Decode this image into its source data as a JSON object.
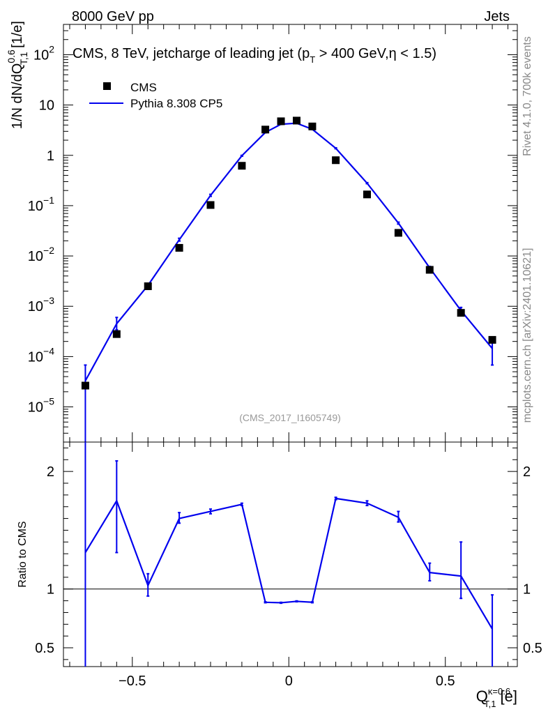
{
  "header": {
    "left": "8000 GeV pp",
    "right": "Jets"
  },
  "side_labels": {
    "rivet": "Rivet 4.1.0,  700k events",
    "site": "mcplots.cern.ch [arXiv:2401.10621]"
  },
  "chart_data": [
    {
      "panel": "main",
      "type": "scatter",
      "title_parts": [
        "CMS, 8 TeV, jetcharge of leading jet (p",
        "T",
        " > 400 GeV,η < 1.5)"
      ],
      "ylabel_parts": [
        "1/N dN/dQ",
        "0.6",
        "T,1",
        " [1/e]"
      ],
      "xlim": [
        -0.72,
        0.73
      ],
      "yscale": "log",
      "ylim": [
        2e-06,
        400
      ],
      "y_ticks": [
        {
          "value": 1e-05,
          "base": "10",
          "exp": "−5"
        },
        {
          "value": 0.0001,
          "base": "10",
          "exp": "−4"
        },
        {
          "value": 0.001,
          "base": "10",
          "exp": "−3"
        },
        {
          "value": 0.01,
          "base": "10",
          "exp": "−2"
        },
        {
          "value": 0.1,
          "base": "10",
          "exp": "−1"
        },
        {
          "value": 1,
          "base": "1",
          "exp": ""
        },
        {
          "value": 10,
          "base": "10",
          "exp": ""
        },
        {
          "value": 100,
          "base": "10",
          "exp": "2"
        }
      ],
      "watermark": "(CMS_2017_I1605749)",
      "legend_position": "top-left",
      "series": [
        {
          "name": "CMS",
          "kind": "markers",
          "color": "#000000",
          "points": [
            {
              "x": -0.65,
              "y": 2.65e-05
            },
            {
              "x": -0.55,
              "y": 0.00028
            },
            {
              "x": -0.45,
              "y": 0.0025
            },
            {
              "x": -0.35,
              "y": 0.0145
            },
            {
              "x": -0.25,
              "y": 0.103
            },
            {
              "x": -0.15,
              "y": 0.62
            },
            {
              "x": -0.075,
              "y": 3.25
            },
            {
              "x": -0.025,
              "y": 4.75
            },
            {
              "x": 0.025,
              "y": 4.9
            },
            {
              "x": 0.075,
              "y": 3.75
            },
            {
              "x": 0.15,
              "y": 0.8
            },
            {
              "x": 0.25,
              "y": 0.167
            },
            {
              "x": 0.35,
              "y": 0.0288
            },
            {
              "x": 0.45,
              "y": 0.0053
            },
            {
              "x": 0.55,
              "y": 0.00074
            },
            {
              "x": 0.65,
              "y": 0.000215
            }
          ]
        },
        {
          "name": "Pythia 8.308 CP5",
          "kind": "line",
          "color": "#0000ee",
          "points": [
            {
              "x": -0.65,
              "y": 3.3e-05,
              "lo": 1e-06,
              "hi": 6.8e-05
            },
            {
              "x": -0.55,
              "y": 0.00045,
              "lo": 0.00034,
              "hi": 0.0006
            },
            {
              "x": -0.45,
              "y": 0.0026,
              "lo": 0.0024,
              "hi": 0.0028
            },
            {
              "x": -0.35,
              "y": 0.021,
              "lo": 0.0198,
              "hi": 0.0225
            },
            {
              "x": -0.25,
              "y": 0.16,
              "lo": 0.153,
              "hi": 0.168
            },
            {
              "x": -0.15,
              "y": 0.98,
              "lo": 0.96,
              "hi": 1.0
            },
            {
              "x": -0.075,
              "y": 2.85,
              "lo": 2.8,
              "hi": 2.9
            },
            {
              "x": -0.025,
              "y": 4.15,
              "lo": 4.1,
              "hi": 4.2
            },
            {
              "x": 0.025,
              "y": 4.35,
              "lo": 4.3,
              "hi": 4.4
            },
            {
              "x": 0.075,
              "y": 3.3,
              "lo": 3.25,
              "hi": 3.35
            },
            {
              "x": 0.15,
              "y": 1.38,
              "lo": 1.35,
              "hi": 1.41
            },
            {
              "x": 0.25,
              "y": 0.28,
              "lo": 0.273,
              "hi": 0.287
            },
            {
              "x": 0.35,
              "y": 0.045,
              "lo": 0.043,
              "hi": 0.047
            },
            {
              "x": 0.45,
              "y": 0.0058,
              "lo": 0.0054,
              "hi": 0.0062
            },
            {
              "x": 0.55,
              "y": 0.00082,
              "lo": 0.0007,
              "hi": 0.00095
            },
            {
              "x": 0.65,
              "y": 0.000145,
              "lo": 6.8e-05,
              "hi": 0.000205
            }
          ]
        }
      ]
    },
    {
      "panel": "ratio",
      "type": "line",
      "ylabel": "Ratio to CMS",
      "xlabel_base": "Q",
      "xlabel_sup": "κ=0.6",
      "xlabel_sub": "T,1",
      "xlabel_unit": " [e]",
      "xlim": [
        -0.72,
        0.73
      ],
      "ylim": [
        0.34,
        2.25
      ],
      "y_ticks": [
        0.5,
        1,
        2
      ],
      "y_tick_labels": [
        "0.5",
        "1",
        "2"
      ],
      "x_ticks": [
        -0.5,
        0,
        0.5
      ],
      "x_tick_labels": [
        "−0.5",
        "0",
        "0.5"
      ],
      "reference_line": 1,
      "series": [
        {
          "name": "Pythia 8.308 CP5 / CMS",
          "color": "#0000ee",
          "points": [
            {
              "x": -0.65,
              "y": 1.31,
              "lo": 0.3,
              "hi": 2.3
            },
            {
              "x": -0.55,
              "y": 1.75,
              "lo": 1.31,
              "hi": 2.09
            },
            {
              "x": -0.45,
              "y": 1.03,
              "lo": 0.94,
              "hi": 1.13
            },
            {
              "x": -0.35,
              "y": 1.6,
              "lo": 1.56,
              "hi": 1.65
            },
            {
              "x": -0.25,
              "y": 1.66,
              "lo": 1.64,
              "hi": 1.68
            },
            {
              "x": -0.15,
              "y": 1.72,
              "lo": 1.71,
              "hi": 1.73
            },
            {
              "x": -0.075,
              "y": 0.887,
              "lo": 0.883,
              "hi": 0.891
            },
            {
              "x": -0.025,
              "y": 0.883,
              "lo": 0.879,
              "hi": 0.887
            },
            {
              "x": 0.025,
              "y": 0.895,
              "lo": 0.891,
              "hi": 0.899
            },
            {
              "x": 0.075,
              "y": 0.887,
              "lo": 0.883,
              "hi": 0.891
            },
            {
              "x": 0.15,
              "y": 1.77,
              "lo": 1.76,
              "hi": 1.78
            },
            {
              "x": 0.25,
              "y": 1.73,
              "lo": 1.71,
              "hi": 1.75
            },
            {
              "x": 0.35,
              "y": 1.61,
              "lo": 1.57,
              "hi": 1.66
            },
            {
              "x": 0.45,
              "y": 1.14,
              "lo": 1.07,
              "hi": 1.22
            },
            {
              "x": 0.55,
              "y": 1.11,
              "lo": 0.92,
              "hi": 1.4
            },
            {
              "x": 0.65,
              "y": 0.66,
              "lo": 0.3,
              "hi": 0.95
            }
          ]
        }
      ]
    }
  ]
}
